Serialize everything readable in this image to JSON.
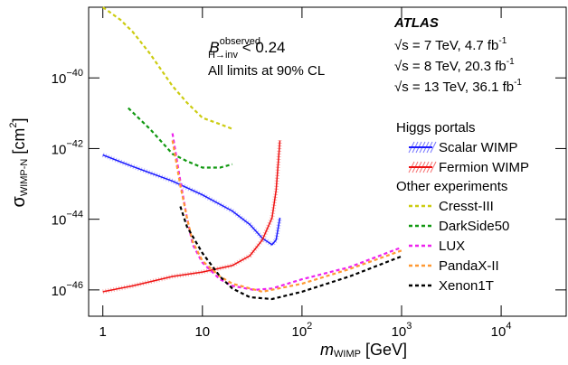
{
  "chart_data": {
    "type": "line",
    "log_x": true,
    "log_y": true,
    "xlim": [
      0.72,
      45000
    ],
    "ylim": [
      1.8e-47,
      1e-38
    ],
    "xticks": [
      1,
      10,
      {
        "value": 100,
        "label": "102"
      },
      {
        "value": 1000,
        "label": "103"
      },
      {
        "value": 10000,
        "label": "104"
      }
    ],
    "yticks": [
      {
        "value": 1e-40,
        "label": "10−40"
      },
      {
        "value": 1e-42,
        "label": "10−42"
      },
      {
        "value": 1e-44,
        "label": "10−44"
      },
      {
        "value": 1e-46,
        "label": "10−46"
      }
    ],
    "xlabel": [
      "m",
      "WIMP",
      " [GeV]"
    ],
    "ylabel": [
      "σ",
      "WIMP-N",
      " [cm",
      "2",
      "]"
    ],
    "experiment": "ATLAS",
    "energy_labels": [
      [
        "√s = 7 TeV, 4.7 fb",
        "-1"
      ],
      [
        "√s = 8 TeV, 20.3 fb",
        "-1"
      ],
      [
        "√s = 13 TeV, 36.1 fb",
        "-1"
      ]
    ],
    "branching_label": [
      "B",
      "observed",
      "H→inv",
      " < 0.24"
    ],
    "cl_label": "All limits at 90% CL",
    "groups": [
      {
        "title": "Higgs portals",
        "series": [
          {
            "name": "Scalar WIMP",
            "color": "#1a1aff",
            "band": true,
            "x": [
              1,
              2,
              5,
              10,
              20,
              30,
              40,
              50,
              55,
              60
            ],
            "values": [
              6.6e-43,
              3.1e-43,
              1.2e-43,
              4.9e-44,
              1.7e-44,
              7.1e-45,
              2.9e-45,
              1.9e-45,
              2.6e-45,
              1.1e-44
            ]
          },
          {
            "name": "Fermion WIMP",
            "color": "#ee1111",
            "band": true,
            "x": [
              1,
              2,
              5,
              10,
              20,
              30,
              40,
              50,
              55,
              60
            ],
            "values": [
              8.9e-47,
              1.3e-46,
              2.4e-46,
              3.2e-46,
              4.9e-46,
              9.3e-46,
              2.6e-45,
              1.1e-44,
              6.6e-44,
              1.7e-42
            ]
          }
        ]
      },
      {
        "title": "Other experiments",
        "series": [
          {
            "name": "Cresst-III",
            "color": "#cccc11",
            "dashed": true,
            "x": [
              1,
              1.5,
              2,
              3,
              5,
              7,
              10,
              15,
              20
            ],
            "values": [
              1e-38,
              4.4e-39,
              2e-39,
              4.7e-40,
              5.9e-41,
              2e-41,
              7.4e-42,
              4.9e-42,
              3.6e-42
            ]
          },
          {
            "name": "DarkSide50",
            "color": "#119911",
            "dashed": true,
            "x": [
              1.8,
              3,
              5,
              7,
              10,
              15,
              20
            ],
            "values": [
              1.4e-41,
              3.5e-42,
              7.1e-43,
              4.4e-43,
              2.9e-43,
              2.9e-43,
              3.6e-43
            ]
          },
          {
            "name": "LUX",
            "color": "#ee22ee",
            "dashed": true,
            "x": [
              5,
              6,
              7,
              8,
              10,
              15,
              20,
              33,
              50,
              100,
              300,
              1000
            ],
            "values": [
              2.7e-42,
              1.2e-43,
              1.1e-44,
              1.9e-45,
              5.9e-46,
              2e-46,
              1.3e-46,
              1e-46,
              1.1e-46,
              2e-46,
              4.4e-46,
              1.6e-45
            ]
          },
          {
            "name": "PandaX-II",
            "color": "#ff9933",
            "dashed": true,
            "x": [
              5,
              6,
              7,
              8,
              10,
              15,
              20,
              40,
              100,
              300,
              1000
            ],
            "values": [
              1.7e-42,
              8.9e-44,
              1.1e-44,
              2.3e-45,
              6.6e-46,
              2.4e-46,
              1.5e-46,
              8.9e-47,
              1.5e-46,
              3.9e-46,
              1.3e-45
            ]
          },
          {
            "name": "Xenon1T",
            "color": "#000000",
            "dashed": true,
            "x": [
              6,
              7,
              10,
              15,
              20,
              30,
              50,
              100,
              300,
              1000
            ],
            "values": [
              2.3e-44,
              6.2e-45,
              1.1e-45,
              2.4e-46,
              1.1e-46,
              6.2e-47,
              5.5e-47,
              8.9e-47,
              2.4e-46,
              8.9e-46
            ]
          }
        ]
      }
    ]
  }
}
